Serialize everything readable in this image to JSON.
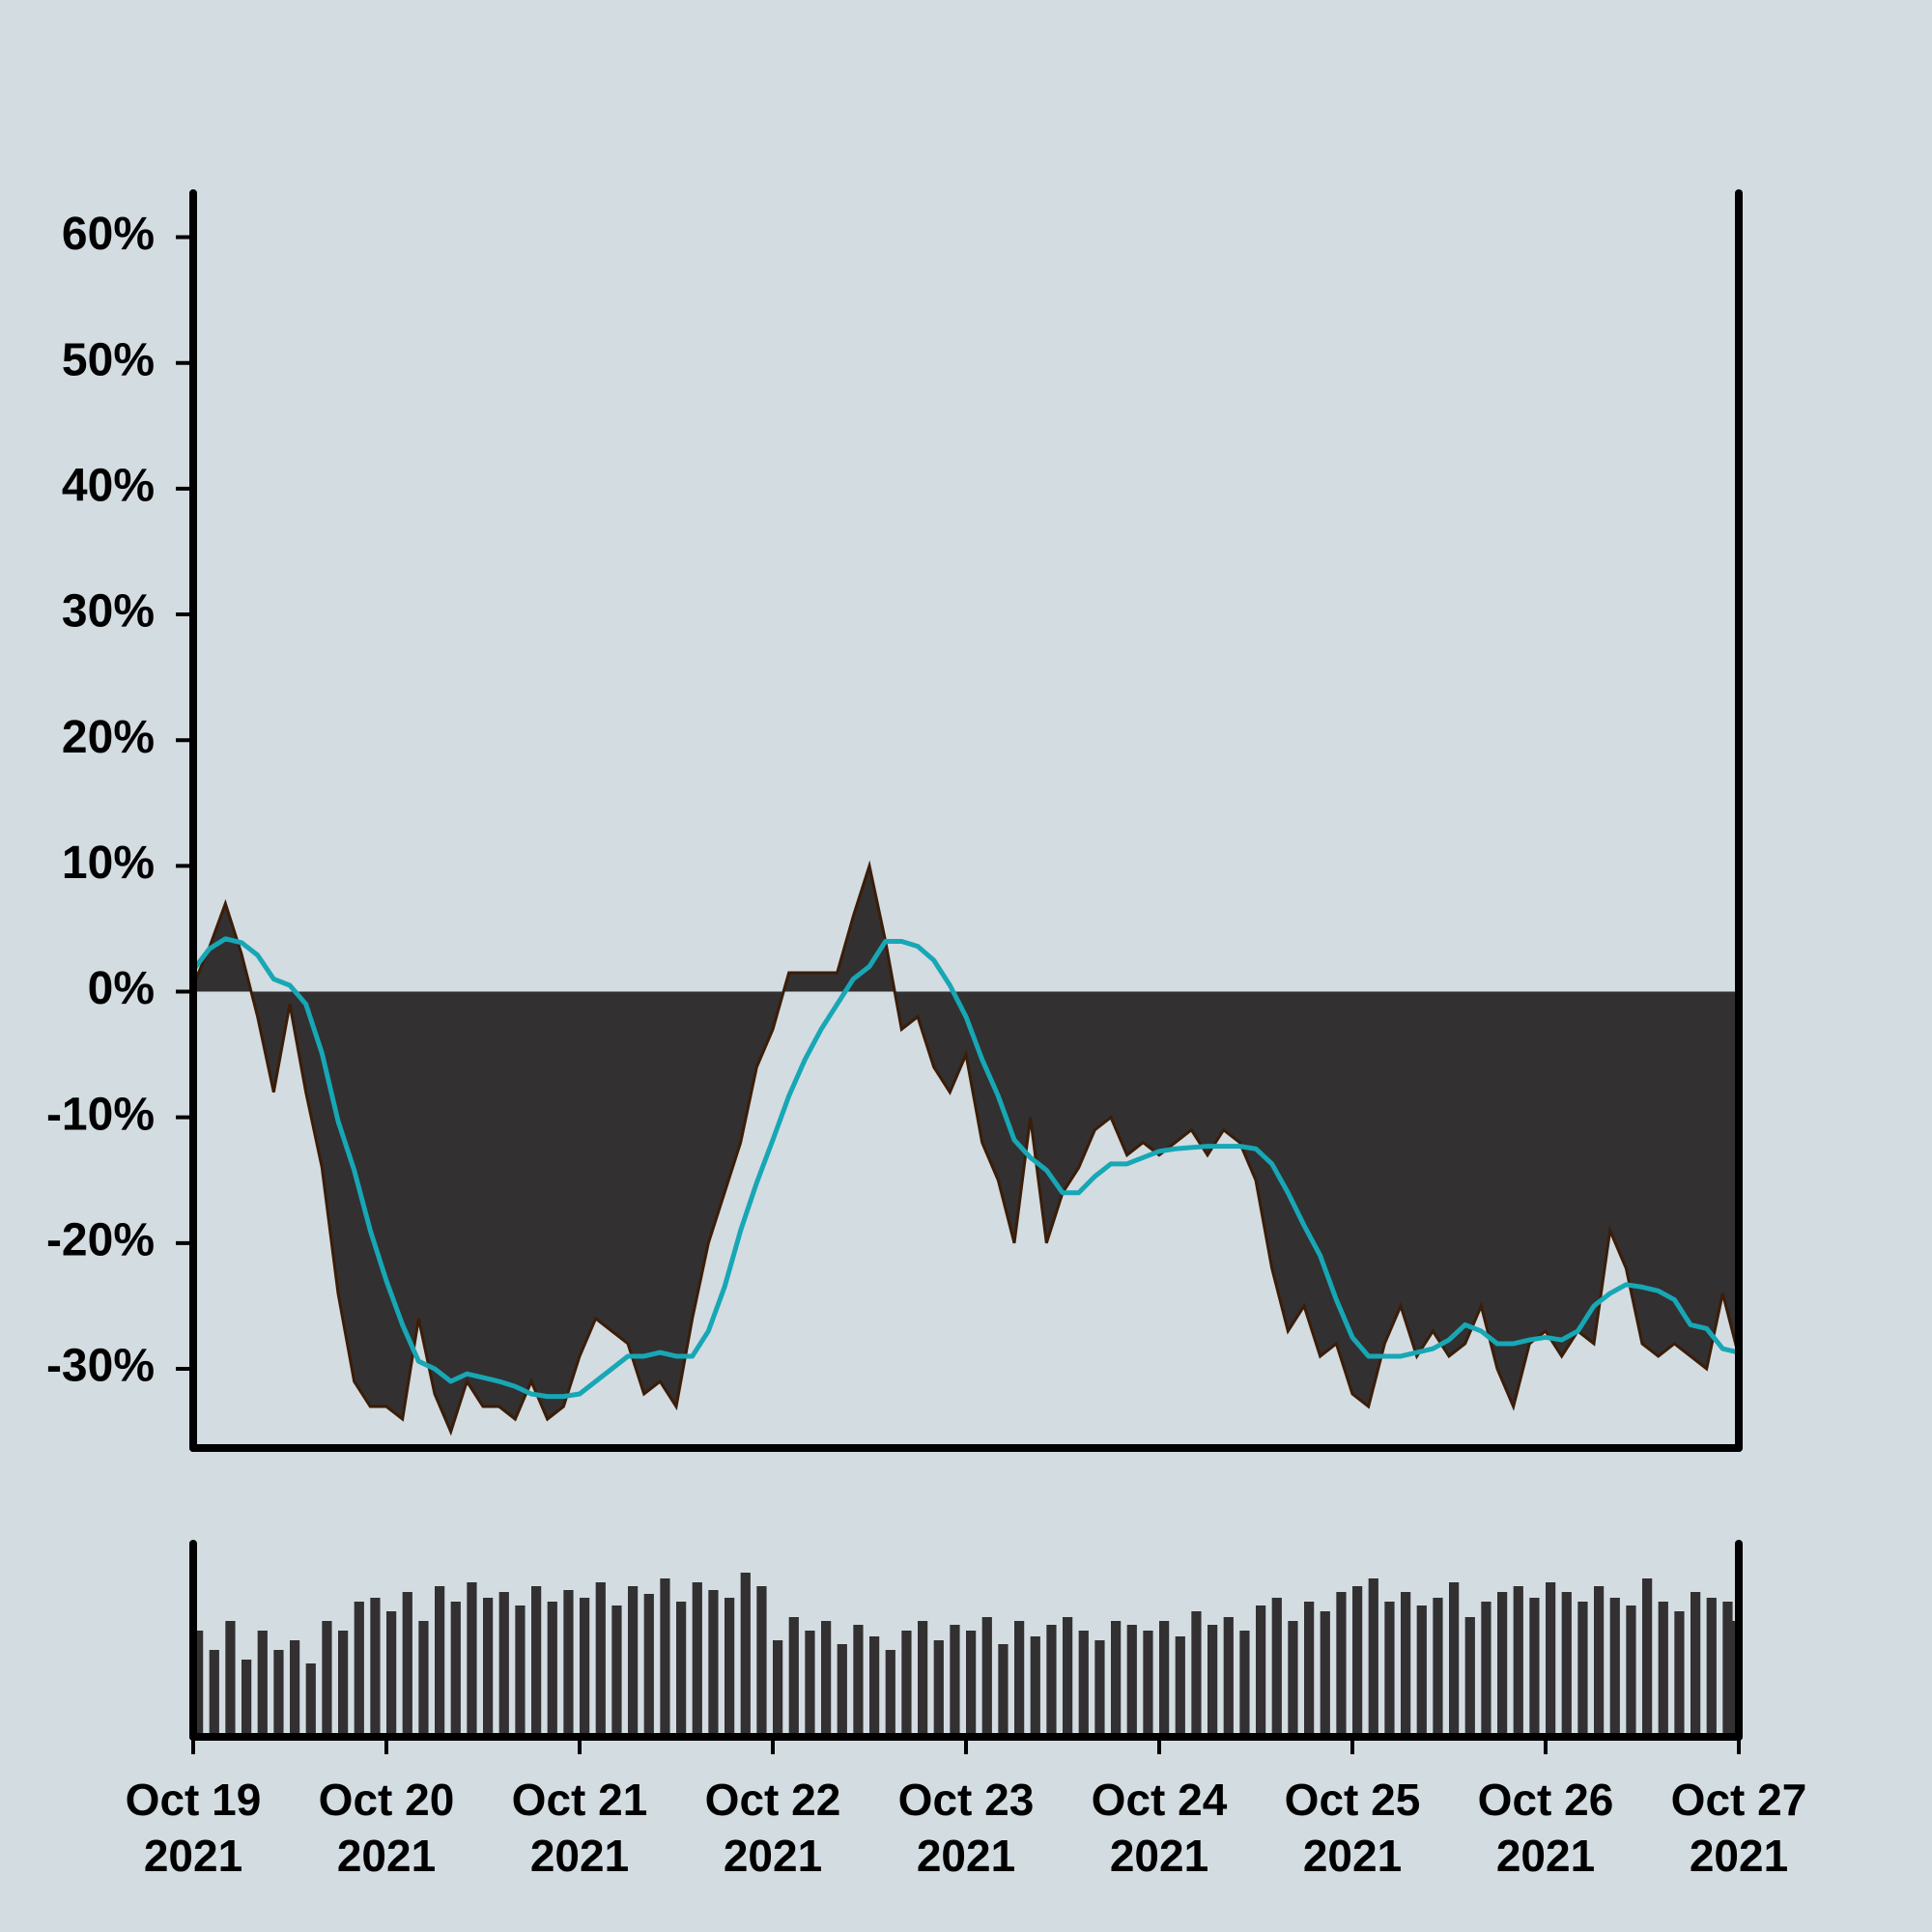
{
  "chart_data": [
    {
      "type": "area",
      "x": [
        "2021-10-19 00:00",
        "2021-10-19 02:00",
        "2021-10-19 04:00",
        "2021-10-19 06:00",
        "2021-10-19 08:00",
        "2021-10-19 10:00",
        "2021-10-19 12:00",
        "2021-10-19 14:00",
        "2021-10-19 16:00",
        "2021-10-19 18:00",
        "2021-10-19 20:00",
        "2021-10-19 22:00",
        "2021-10-20 00:00",
        "2021-10-20 02:00",
        "2021-10-20 04:00",
        "2021-10-20 06:00",
        "2021-10-20 08:00",
        "2021-10-20 10:00",
        "2021-10-20 12:00",
        "2021-10-20 14:00",
        "2021-10-20 16:00",
        "2021-10-20 18:00",
        "2021-10-20 20:00",
        "2021-10-20 22:00",
        "2021-10-21 00:00",
        "2021-10-21 02:00",
        "2021-10-21 04:00",
        "2021-10-21 06:00",
        "2021-10-21 08:00",
        "2021-10-21 10:00",
        "2021-10-21 12:00",
        "2021-10-21 14:00",
        "2021-10-21 16:00",
        "2021-10-21 18:00",
        "2021-10-21 20:00",
        "2021-10-21 22:00",
        "2021-10-22 00:00",
        "2021-10-22 02:00",
        "2021-10-22 04:00",
        "2021-10-22 06:00",
        "2021-10-22 08:00",
        "2021-10-22 10:00",
        "2021-10-22 12:00",
        "2021-10-22 14:00",
        "2021-10-22 16:00",
        "2021-10-22 18:00",
        "2021-10-22 20:00",
        "2021-10-22 22:00",
        "2021-10-23 00:00",
        "2021-10-23 02:00",
        "2021-10-23 04:00",
        "2021-10-23 06:00",
        "2021-10-23 08:00",
        "2021-10-23 10:00",
        "2021-10-23 12:00",
        "2021-10-23 14:00",
        "2021-10-23 16:00",
        "2021-10-23 18:00",
        "2021-10-23 20:00",
        "2021-10-23 22:00",
        "2021-10-24 00:00",
        "2021-10-24 02:00",
        "2021-10-24 04:00",
        "2021-10-24 06:00",
        "2021-10-24 08:00",
        "2021-10-24 10:00",
        "2021-10-24 12:00",
        "2021-10-24 14:00",
        "2021-10-24 16:00",
        "2021-10-24 18:00",
        "2021-10-24 20:00",
        "2021-10-24 22:00",
        "2021-10-25 00:00",
        "2021-10-25 02:00",
        "2021-10-25 04:00",
        "2021-10-25 06:00",
        "2021-10-25 08:00",
        "2021-10-25 10:00",
        "2021-10-25 12:00",
        "2021-10-25 14:00",
        "2021-10-25 16:00",
        "2021-10-25 18:00",
        "2021-10-25 20:00",
        "2021-10-25 22:00",
        "2021-10-26 00:00",
        "2021-10-26 02:00",
        "2021-10-26 04:00",
        "2021-10-26 06:00",
        "2021-10-26 08:00",
        "2021-10-26 10:00",
        "2021-10-26 12:00",
        "2021-10-26 14:00",
        "2021-10-26 16:00",
        "2021-10-26 18:00",
        "2021-10-26 20:00",
        "2021-10-26 22:00",
        "2021-10-27 00:00"
      ],
      "series": [
        {
          "style": "area",
          "color": "#323031",
          "edge_color": "#3b1d08",
          "values": [
            0.5,
            3.5,
            7,
            3,
            -2,
            -8,
            -1,
            -8,
            -14,
            -24,
            -31,
            -33,
            -33,
            -34,
            -26,
            -32,
            -35,
            -31,
            -33,
            -33,
            -34,
            -31,
            -34,
            -33,
            -29,
            -26,
            -27,
            -28,
            -32,
            -31,
            -33,
            -26,
            -20,
            -16,
            -12,
            -6,
            -3,
            1.5,
            1.5,
            1.5,
            1.5,
            6,
            10,
            4,
            -3,
            -2,
            -6,
            -8,
            -5,
            -12,
            -15,
            -20,
            -10,
            -20,
            -16,
            -14,
            -11,
            -10,
            -13,
            -12,
            -13,
            -12,
            -11,
            -13,
            -11,
            -12,
            -15,
            -22,
            -27,
            -25,
            -29,
            -28,
            -32,
            -33,
            -28,
            -25,
            -29,
            -27,
            -29,
            -28,
            -25,
            -30,
            -33,
            -28,
            -27,
            -29,
            -27,
            -28,
            -19,
            -22,
            -28,
            -29,
            -28,
            -29,
            -30,
            -24,
            -29
          ]
        },
        {
          "style": "line",
          "color": "#17a7b5",
          "values": [
            1.7,
            3.4,
            4.2,
            3.9,
            2.9,
            1,
            0.5,
            -1,
            -4.9,
            -10.3,
            -14.2,
            -19,
            -23,
            -26.5,
            -29.4,
            -30,
            -31,
            -30.4,
            -30.7,
            -31,
            -31.4,
            -32,
            -32.2,
            -32.2,
            -32,
            -31,
            -30,
            -29,
            -29,
            -28.7,
            -29,
            -29,
            -27,
            -23.5,
            -19,
            -15.2,
            -11.8,
            -8.3,
            -5.4,
            -3,
            -1,
            1,
            2,
            4,
            4,
            3.6,
            2.5,
            0.5,
            -2,
            -5.4,
            -8.3,
            -11.8,
            -13.2,
            -14.2,
            -16,
            -16,
            -14.7,
            -13.7,
            -13.7,
            -13.2,
            -12.7,
            -12.5,
            -12.4,
            -12.3,
            -12.3,
            -12.3,
            -12.5,
            -13.7,
            -16,
            -18.6,
            -21,
            -24.5,
            -27.5,
            -29,
            -29,
            -29,
            -28.7,
            -28.4,
            -27.7,
            -26.5,
            -27,
            -28,
            -28,
            -27.7,
            -27.5,
            -27.7,
            -27,
            -25,
            -24,
            -23.3,
            -23.5,
            -23.8,
            -24.5,
            -26.5,
            -26.8,
            -28.4,
            -28.7
          ]
        }
      ],
      "xlim": [
        "2021-10-19 00:00",
        "2021-10-27 00:00"
      ],
      "ylim": [
        -36.3,
        63.5
      ],
      "yticks": [
        {
          "value": -30,
          "label": "-30%"
        },
        {
          "value": -20,
          "label": "-20%"
        },
        {
          "value": -10,
          "label": "-10%"
        },
        {
          "value": 0,
          "label": "0%"
        },
        {
          "value": 10,
          "label": "10%"
        },
        {
          "value": 20,
          "label": "20%"
        },
        {
          "value": 30,
          "label": "30%"
        },
        {
          "value": 40,
          "label": "40%"
        },
        {
          "value": 50,
          "label": "50%"
        },
        {
          "value": 60,
          "label": "60%"
        }
      ],
      "grid": false
    },
    {
      "type": "bar",
      "x": [
        "2021-10-19 00:00",
        "2021-10-19 02:00",
        "2021-10-19 04:00",
        "2021-10-19 06:00",
        "2021-10-19 08:00",
        "2021-10-19 10:00",
        "2021-10-19 12:00",
        "2021-10-19 14:00",
        "2021-10-19 16:00",
        "2021-10-19 18:00",
        "2021-10-19 20:00",
        "2021-10-19 22:00",
        "2021-10-20 00:00",
        "2021-10-20 02:00",
        "2021-10-20 04:00",
        "2021-10-20 06:00",
        "2021-10-20 08:00",
        "2021-10-20 10:00",
        "2021-10-20 12:00",
        "2021-10-20 14:00",
        "2021-10-20 16:00",
        "2021-10-20 18:00",
        "2021-10-20 20:00",
        "2021-10-20 22:00",
        "2021-10-21 00:00",
        "2021-10-21 02:00",
        "2021-10-21 04:00",
        "2021-10-21 06:00",
        "2021-10-21 08:00",
        "2021-10-21 10:00",
        "2021-10-21 12:00",
        "2021-10-21 14:00",
        "2021-10-21 16:00",
        "2021-10-21 18:00",
        "2021-10-21 20:00",
        "2021-10-21 22:00",
        "2021-10-22 00:00",
        "2021-10-22 02:00",
        "2021-10-22 04:00",
        "2021-10-22 06:00",
        "2021-10-22 08:00",
        "2021-10-22 10:00",
        "2021-10-22 12:00",
        "2021-10-22 14:00",
        "2021-10-22 16:00",
        "2021-10-22 18:00",
        "2021-10-22 20:00",
        "2021-10-22 22:00",
        "2021-10-23 00:00",
        "2021-10-23 02:00",
        "2021-10-23 04:00",
        "2021-10-23 06:00",
        "2021-10-23 08:00",
        "2021-10-23 10:00",
        "2021-10-23 12:00",
        "2021-10-23 14:00",
        "2021-10-23 16:00",
        "2021-10-23 18:00",
        "2021-10-23 20:00",
        "2021-10-23 22:00",
        "2021-10-24 00:00",
        "2021-10-24 02:00",
        "2021-10-24 04:00",
        "2021-10-24 06:00",
        "2021-10-24 08:00",
        "2021-10-24 10:00",
        "2021-10-24 12:00",
        "2021-10-24 14:00",
        "2021-10-24 16:00",
        "2021-10-24 18:00",
        "2021-10-24 20:00",
        "2021-10-24 22:00",
        "2021-10-25 00:00",
        "2021-10-25 02:00",
        "2021-10-25 04:00",
        "2021-10-25 06:00",
        "2021-10-25 08:00",
        "2021-10-25 10:00",
        "2021-10-25 12:00",
        "2021-10-25 14:00",
        "2021-10-25 16:00",
        "2021-10-25 18:00",
        "2021-10-25 20:00",
        "2021-10-25 22:00",
        "2021-10-26 00:00",
        "2021-10-26 02:00",
        "2021-10-26 04:00",
        "2021-10-26 06:00",
        "2021-10-26 08:00",
        "2021-10-26 10:00",
        "2021-10-26 12:00",
        "2021-10-26 14:00",
        "2021-10-26 16:00",
        "2021-10-26 18:00",
        "2021-10-26 20:00",
        "2021-10-26 22:00",
        "2021-10-27 00:00"
      ],
      "values": [
        55,
        45,
        60,
        40,
        55,
        45,
        50,
        38,
        60,
        55,
        70,
        72,
        65,
        75,
        60,
        78,
        70,
        80,
        72,
        75,
        68,
        78,
        70,
        76,
        72,
        80,
        68,
        78,
        74,
        82,
        70,
        80,
        76,
        72,
        85,
        78,
        50,
        62,
        55,
        60,
        48,
        58,
        52,
        45,
        55,
        60,
        50,
        58,
        55,
        62,
        48,
        60,
        52,
        58,
        62,
        55,
        50,
        60,
        58,
        55,
        60,
        52,
        65,
        58,
        62,
        55,
        68,
        72,
        60,
        70,
        65,
        75,
        78,
        82,
        70,
        75,
        68,
        72,
        80,
        62,
        70,
        75,
        78,
        72,
        80,
        75,
        70,
        78,
        72,
        68,
        82,
        70,
        65,
        75,
        72,
        70,
        60
      ],
      "color": "#323031",
      "xlim": [
        "2021-10-19 00:00",
        "2021-10-27 00:00"
      ],
      "ylim": [
        0,
        100
      ],
      "xticks": [
        {
          "value": "2021-10-19 00:00",
          "label": "Oct 19\n2021"
        },
        {
          "value": "2021-10-20 00:00",
          "label": "Oct 20\n2021"
        },
        {
          "value": "2021-10-21 00:00",
          "label": "Oct 21\n2021"
        },
        {
          "value": "2021-10-22 00:00",
          "label": "Oct 22\n2021"
        },
        {
          "value": "2021-10-23 00:00",
          "label": "Oct 23\n2021"
        },
        {
          "value": "2021-10-24 00:00",
          "label": "Oct 24\n2021"
        },
        {
          "value": "2021-10-25 00:00",
          "label": "Oct 25\n2021"
        },
        {
          "value": "2021-10-26 00:00",
          "label": "Oct 26\n2021"
        },
        {
          "value": "2021-10-27 00:00",
          "label": "Oct 27\n2021"
        }
      ]
    }
  ]
}
